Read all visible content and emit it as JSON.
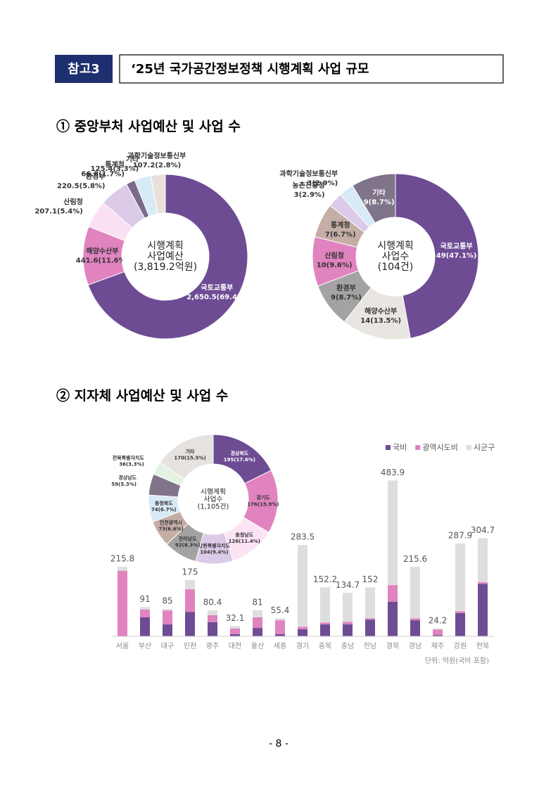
{
  "header": {
    "badge": "참고3",
    "title": "‘25년 국가공간정보정책 시행계획 사업 규모"
  },
  "sections": [
    "① 중앙부처 사업예산 및 사업 수",
    "② 지자체 사업예산 및 사업 수"
  ],
  "page_number": "- 8 -",
  "chart_data": [
    {
      "type": "pie",
      "center_label": [
        "시행계획",
        "사업예산",
        "(3,819.2억원)"
      ],
      "categories": [
        "국토교통부",
        "해양수산부",
        "산림청",
        "환경부",
        "통계청",
        "기타",
        "과학기술정보통신부"
      ],
      "values": [
        2650.5,
        441.6,
        207.1,
        220.5,
        66.8,
        125.4,
        107.2
      ],
      "value_labels": [
        "2,650.5",
        "441.6",
        "207.1",
        "220.5",
        "66.8",
        "125.4",
        "107.2"
      ],
      "percent_labels": [
        "(69.4%)",
        "(11.6%)",
        "(5.4%)",
        "(5.8%)",
        "(1.7%)",
        "(3.3%)",
        "(2.8%)"
      ],
      "colors": [
        "#6e4c94",
        "#e083bf",
        "#fbe0f3",
        "#dccbe8",
        "#7a6b8a",
        "#d8eaf6",
        "#e9e0da"
      ]
    },
    {
      "type": "pie",
      "center_label": [
        "시행계획",
        "사업수",
        "(104건)"
      ],
      "categories": [
        "국토교통부",
        "해양수산부",
        "환경부",
        "산림청",
        "통계청",
        "농촌진흥청",
        "과학기술정보통신부",
        "기타"
      ],
      "values": [
        49,
        14,
        9,
        10,
        7,
        3,
        3,
        9
      ],
      "percent_labels": [
        "(47.1%)",
        "(13.5%)",
        "(8.7%)",
        "(9.6%)",
        "(6.7%)",
        "(2.9%)",
        "(2.9%)",
        "(8.7%)"
      ],
      "colors": [
        "#6e4c94",
        "#e9e5e1",
        "#a3a3a3",
        "#e083bf",
        "#c4aea6",
        "#dccbe8",
        "#d8eaf6",
        "#80748a"
      ]
    },
    {
      "type": "pie",
      "center_label": [
        "시행계획",
        "사업수",
        "(1,105건)"
      ],
      "categories": [
        "경상북도",
        "경기도",
        "충청남도",
        "강원특별자치도",
        "전라남도",
        "인천광역시",
        "충청북도",
        "경상남도",
        "전북특별자치도",
        "기타"
      ],
      "values": [
        195,
        176,
        126,
        104,
        92,
        73,
        74,
        59,
        36,
        170
      ],
      "percent_labels": [
        "(17.6%)",
        "(15.9%)",
        "(11.4%)",
        "(9.4%)",
        "(8.3%)",
        "(6.6%)",
        "(6.7%)",
        "(5.3%)",
        "(3.3%)",
        "(15.5%)"
      ],
      "colors": [
        "#6e4c94",
        "#e083bf",
        "#fde4f5",
        "#dccbe8",
        "#a3a3a3",
        "#c4aea6",
        "#d8eaf6",
        "#80748a",
        "#e3f1e3",
        "#e6e2df"
      ]
    },
    {
      "type": "stacked-bar",
      "note": "단위: 억원(국비 포함)",
      "categories": [
        "서울",
        "부산",
        "대구",
        "인천",
        "광주",
        "대전",
        "울산",
        "세종",
        "경기",
        "충북",
        "충남",
        "전남",
        "경북",
        "경남",
        "제주",
        "강원",
        "전북"
      ],
      "series": [
        {
          "name": "국비",
          "color": "#6e4c94",
          "values": [
            0,
            59,
            37,
            76,
            44,
            7,
            26,
            7,
            22,
            37,
            37,
            52,
            107,
            50,
            4,
            72,
            163
          ]
        },
        {
          "name": "광역시도비",
          "color": "#e083bf",
          "values": [
            203,
            24,
            43,
            70,
            22,
            17,
            33,
            43,
            8,
            6,
            8,
            4,
            52,
            6,
            17,
            6,
            5
          ]
        },
        {
          "name": "시군구",
          "color": "#dedede",
          "values": [
            12.8,
            8,
            5,
            29,
            14.4,
            8.1,
            22,
            5.4,
            253.5,
            109.2,
            89.7,
            96,
            324.9,
            159.6,
            3.2,
            209.9,
            136.7
          ]
        }
      ],
      "totals": [
        215.8,
        91,
        85,
        175,
        80.4,
        32.1,
        81,
        55.4,
        283.5,
        152.2,
        134.7,
        152,
        483.9,
        215.6,
        24.2,
        287.9,
        304.7
      ],
      "ylim": [
        0,
        500
      ]
    }
  ]
}
